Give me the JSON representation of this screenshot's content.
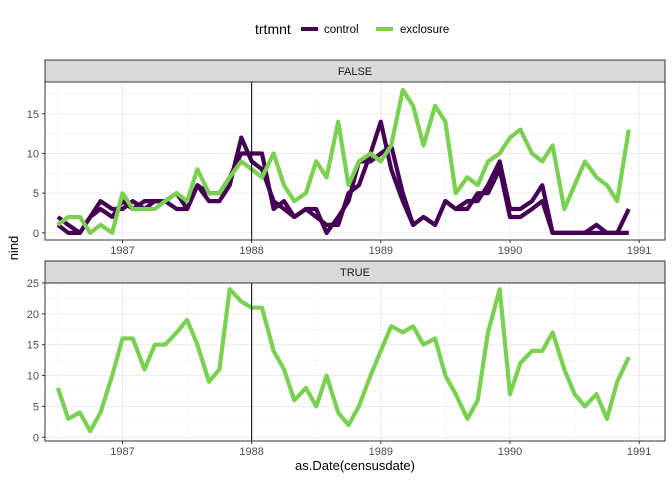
{
  "chart_data": {
    "type": "line",
    "legend": {
      "title": "trtmnt",
      "placement": "top",
      "entries": [
        {
          "name": "control",
          "color": "#440154"
        },
        {
          "name": "exclosure",
          "color": "#7AD151"
        }
      ]
    },
    "xlabel": "as.Date(censusdate)",
    "ylabel": "nind",
    "xlim": [
      1986.4,
      1991.2
    ],
    "x_ticks": [
      1987,
      1988,
      1989,
      1990,
      1991
    ],
    "x_tick_labels": [
      "1987",
      "1988",
      "1989",
      "1990",
      "1991"
    ],
    "vline_x": 1988.0,
    "grid": true,
    "panels": [
      {
        "strip": "FALSE",
        "ylim": [
          -0.9,
          19
        ],
        "y_ticks": [
          0,
          5,
          10,
          15
        ],
        "y_tick_labels": [
          "0",
          "5",
          "10",
          "15"
        ],
        "series": [
          {
            "name": "control",
            "color": "#440154",
            "x": [
              1986.5,
              1986.58,
              1986.67,
              1986.75,
              1986.83,
              1986.92,
              1987.0,
              1987.08,
              1987.17,
              1987.25,
              1987.33,
              1987.42,
              1987.5,
              1987.58,
              1987.67,
              1987.75,
              1987.83,
              1987.92,
              1988.0,
              1988.08,
              1988.17,
              1988.25,
              1988.33,
              1988.42,
              1988.5,
              1988.58,
              1988.67,
              1988.75,
              1988.83,
              1988.92,
              1989.0,
              1989.08,
              1989.17,
              1989.25,
              1989.33,
              1989.42,
              1989.5,
              1989.58,
              1989.67,
              1989.75,
              1989.83,
              1989.92,
              1990.0,
              1990.08,
              1990.17,
              1990.25,
              1990.33,
              1990.42,
              1990.5,
              1990.58,
              1990.67,
              1990.75,
              1990.83,
              1990.92
            ],
            "y": [
              1,
              0,
              0,
              2,
              3,
              2,
              4,
              3,
              4,
              4,
              4,
              3,
              3,
              6,
              4,
              4,
              6,
              12,
              9,
              8,
              4,
              3,
              2,
              3,
              3,
              0,
              2,
              4,
              9,
              9,
              10,
              11,
              5,
              1,
              2,
              1,
              4,
              3,
              3,
              5,
              5,
              8,
              2,
              2,
              3,
              4,
              0,
              0,
              0,
              0,
              0,
              0,
              0,
              3
            ]
          },
          {
            "name": "control",
            "color": "#440154",
            "x": [
              1986.5,
              1986.58,
              1986.67,
              1986.75,
              1986.83,
              1986.92,
              1987.0,
              1987.08,
              1987.17,
              1987.25,
              1987.33,
              1987.42,
              1987.5,
              1987.58,
              1987.67,
              1987.75,
              1987.83,
              1987.92,
              1988.0,
              1988.08,
              1988.17,
              1988.25,
              1988.33,
              1988.42,
              1988.5,
              1988.58,
              1988.67,
              1988.75,
              1988.83,
              1988.92,
              1989.0,
              1989.08,
              1989.17,
              1989.25,
              1989.33,
              1989.42,
              1989.5,
              1989.58,
              1989.67,
              1989.75,
              1989.83,
              1989.92,
              1990.0,
              1990.08,
              1990.17,
              1990.25,
              1990.33,
              1990.42,
              1990.5,
              1990.58,
              1990.67,
              1990.75,
              1990.83,
              1990.92
            ],
            "y": [
              2,
              1,
              0,
              2,
              4,
              3,
              3,
              4,
              3,
              4,
              4,
              5,
              3,
              6,
              5,
              5,
              7,
              10,
              10,
              10,
              3,
              4,
              2,
              3,
              2,
              1,
              1,
              5,
              6,
              10,
              14,
              8,
              4,
              1,
              2,
              1,
              4,
              3,
              4,
              4,
              6,
              9,
              3,
              3,
              4,
              6,
              0,
              0,
              0,
              0,
              1,
              0,
              0,
              0
            ]
          },
          {
            "name": "exclosure",
            "color": "#7AD151",
            "x": [
              1986.5,
              1986.58,
              1986.67,
              1986.75,
              1986.83,
              1986.92,
              1987.0,
              1987.08,
              1987.17,
              1987.25,
              1987.33,
              1987.42,
              1987.5,
              1987.58,
              1987.67,
              1987.75,
              1987.83,
              1987.92,
              1988.0,
              1988.08,
              1988.17,
              1988.25,
              1988.33,
              1988.42,
              1988.5,
              1988.58,
              1988.67,
              1988.75,
              1988.83,
              1988.92,
              1989.0,
              1989.08,
              1989.17,
              1989.25,
              1989.33,
              1989.42,
              1989.5,
              1989.58,
              1989.67,
              1989.75,
              1989.83,
              1989.92,
              1990.0,
              1990.08,
              1990.17,
              1990.25,
              1990.33,
              1990.42,
              1990.5,
              1990.58,
              1990.67,
              1990.75,
              1990.83,
              1990.92
            ],
            "y": [
              1,
              2,
              2,
              0,
              1,
              0,
              5,
              3,
              3,
              3,
              4,
              5,
              4,
              8,
              5,
              5,
              7,
              9,
              8,
              7,
              10,
              6,
              4,
              5,
              9,
              7,
              14,
              6,
              9,
              10,
              9,
              11,
              18,
              16,
              11,
              16,
              14,
              5,
              7,
              6,
              9,
              10,
              12,
              13,
              10,
              9,
              11,
              3,
              6,
              9,
              7,
              6,
              4,
              13
            ]
          }
        ]
      },
      {
        "strip": "TRUE",
        "ylim": [
          -0.6,
          25
        ],
        "y_ticks": [
          0,
          5,
          10,
          15,
          20,
          25
        ],
        "y_tick_labels": [
          "0",
          "5",
          "10",
          "15",
          "20",
          "25"
        ],
        "series": [
          {
            "name": "exclosure",
            "color": "#7AD151",
            "x": [
              1986.5,
              1986.58,
              1986.67,
              1986.75,
              1986.83,
              1986.92,
              1987.0,
              1987.08,
              1987.17,
              1987.25,
              1987.33,
              1987.42,
              1987.5,
              1987.58,
              1987.67,
              1987.75,
              1987.83,
              1987.92,
              1988.0,
              1988.08,
              1988.17,
              1988.25,
              1988.33,
              1988.42,
              1988.5,
              1988.58,
              1988.67,
              1988.75,
              1988.83,
              1988.92,
              1989.0,
              1989.08,
              1989.17,
              1989.25,
              1989.33,
              1989.42,
              1989.5,
              1989.58,
              1989.67,
              1989.75,
              1989.83,
              1989.92,
              1990.0,
              1990.08,
              1990.17,
              1990.25,
              1990.33,
              1990.42,
              1990.5,
              1990.58,
              1990.67,
              1990.75,
              1990.83,
              1990.92
            ],
            "y": [
              8,
              3,
              4,
              1,
              4,
              10,
              16,
              16,
              11,
              15,
              15,
              17,
              19,
              15,
              9,
              11,
              24,
              22,
              21,
              21,
              14,
              11,
              6,
              8,
              5,
              10,
              4,
              2,
              5,
              10,
              14,
              18,
              17,
              18,
              15,
              16,
              10,
              7,
              3,
              6,
              17,
              24,
              7,
              12,
              14,
              14,
              17,
              11,
              7,
              5,
              7,
              3,
              9,
              13
            ]
          }
        ]
      }
    ]
  }
}
